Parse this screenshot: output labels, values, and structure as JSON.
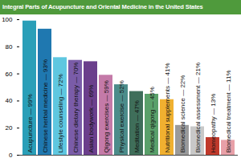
{
  "chart_data": {
    "type": "bar",
    "title": "Integral Parts of Acupuncture and Oriental Medicine in the United States",
    "categories": [
      "Acupuncture — 99%",
      "Chinese herbal medicine — 93%",
      "Lifestyle counseling — 72%",
      "Chinese dietary therapy — 70%",
      "Asian bodywork — 69%",
      "Qigong exercises — 59%",
      "Physical exercise — 52%",
      "Meditation — 47%",
      "Medical qigong — 45%",
      "Nutritional supplements — 41%",
      "Biomedical science — 22%",
      "Biomedical assessment — 21%",
      "Homeopathy — 13%",
      "Biomedical treatment — 11%"
    ],
    "values": [
      99,
      93,
      72,
      70,
      69,
      59,
      52,
      47,
      45,
      41,
      22,
      21,
      13,
      11
    ],
    "colors": [
      "#2a9fb8",
      "#1f78b0",
      "#5fc7e0",
      "#7a5ca8",
      "#6b3f8c",
      "#c47aa8",
      "#4c8c8a",
      "#3f6e5a",
      "#5aa06a",
      "#f0b030",
      "#9a9a9a",
      "#c8c8c8",
      "#c0392b",
      "#e8a0a8"
    ],
    "ylim": [
      0,
      100
    ],
    "yticks": [
      0,
      20,
      40,
      60,
      80,
      100
    ],
    "tick_labels": "y",
    "grid": false
  }
}
